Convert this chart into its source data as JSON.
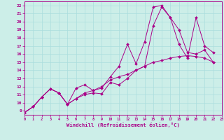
{
  "xlabel": "Windchill (Refroidissement éolien,°C)",
  "bg_color": "#cceee8",
  "grid_color": "#aadddd",
  "line_color": "#aa0088",
  "xlim": [
    0,
    23
  ],
  "ylim": [
    8.5,
    22.5
  ],
  "xticks": [
    0,
    1,
    2,
    3,
    4,
    5,
    6,
    7,
    8,
    9,
    10,
    11,
    12,
    13,
    14,
    15,
    16,
    17,
    18,
    19,
    20,
    21,
    22,
    23
  ],
  "yticks": [
    9,
    10,
    11,
    12,
    13,
    14,
    15,
    16,
    17,
    18,
    19,
    20,
    21,
    22
  ],
  "line1_x": [
    0,
    1,
    2,
    3,
    4,
    5,
    6,
    7,
    8,
    9,
    10,
    11,
    12,
    13,
    14,
    15,
    16,
    17,
    18,
    19,
    20,
    21,
    22
  ],
  "line1_y": [
    8.8,
    9.5,
    10.7,
    11.7,
    11.2,
    9.8,
    10.5,
    11.0,
    11.2,
    11.1,
    12.5,
    12.2,
    13.0,
    14.0,
    14.5,
    19.5,
    21.8,
    20.5,
    19.0,
    16.2,
    16.0,
    16.5,
    15.0
  ],
  "line2_x": [
    0,
    1,
    2,
    3,
    4,
    5,
    6,
    7,
    8,
    9,
    10,
    11,
    12,
    13,
    14,
    15,
    16,
    17,
    18,
    19,
    20,
    21,
    22
  ],
  "line2_y": [
    8.8,
    9.5,
    10.7,
    11.7,
    11.2,
    9.8,
    11.8,
    12.2,
    11.5,
    11.8,
    13.2,
    14.5,
    17.2,
    14.8,
    17.5,
    21.8,
    22.0,
    20.5,
    17.2,
    15.5,
    20.5,
    17.0,
    16.2
  ],
  "line3_x": [
    0,
    1,
    2,
    3,
    4,
    5,
    6,
    7,
    8,
    9,
    10,
    11,
    12,
    13,
    14,
    15,
    16,
    17,
    18,
    19,
    20,
    21,
    22
  ],
  "line3_y": [
    8.8,
    9.5,
    10.7,
    11.7,
    11.2,
    9.8,
    10.5,
    11.2,
    11.5,
    12.0,
    12.8,
    13.2,
    13.5,
    14.0,
    14.5,
    15.0,
    15.2,
    15.5,
    15.7,
    15.8,
    15.7,
    15.5,
    15.0
  ]
}
